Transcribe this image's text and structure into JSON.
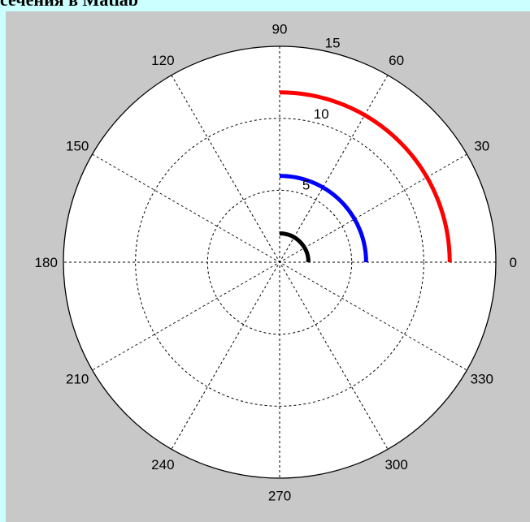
{
  "page": {
    "title": "сечения в Matlab"
  },
  "colors": {
    "page_background": "#ccffff",
    "figure_background": "#c8c8c8",
    "plot_area": "#ffffff",
    "grid": "#000000"
  },
  "chart_data": {
    "type": "polar",
    "title": "",
    "theta_unit": "degrees",
    "angular_ticks": [
      "0",
      "30",
      "60",
      "90",
      "120",
      "150",
      "180",
      "210",
      "240",
      "270",
      "300",
      "330"
    ],
    "angular_tick_values": [
      0,
      30,
      60,
      90,
      120,
      150,
      180,
      210,
      240,
      270,
      300,
      330
    ],
    "radial_ticks": [
      "5",
      "10",
      "15"
    ],
    "radial_tick_values": [
      5,
      10,
      15
    ],
    "r_max": 15,
    "grid": true,
    "series": [
      {
        "color": "#ff0000",
        "r": 11.8,
        "theta_range": [
          0,
          90
        ]
      },
      {
        "color": "#0000ff",
        "r": 6.0,
        "theta_range": [
          0,
          90
        ]
      },
      {
        "color": "#000000",
        "r": 2.0,
        "theta_range": [
          0,
          90
        ]
      }
    ]
  }
}
